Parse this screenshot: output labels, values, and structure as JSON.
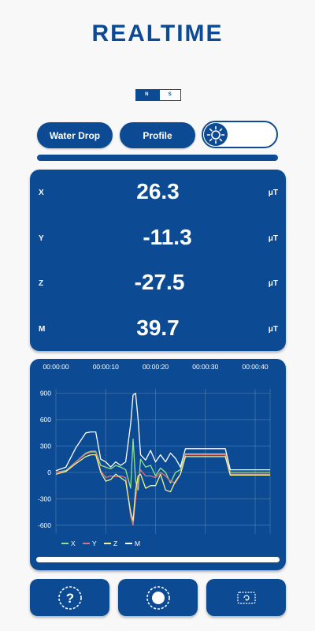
{
  "header": {
    "title": "REALTIME"
  },
  "polarity": {
    "n_label": "N",
    "s_label": "S"
  },
  "controls": {
    "water_drop_label": "Water Drop",
    "profile_label": "Profile",
    "light_toggle_icon": "sun-icon"
  },
  "progress": {
    "value": 1.0
  },
  "readings": {
    "x": {
      "axis": "X",
      "value": "26.3",
      "unit": "μT"
    },
    "y": {
      "axis": "Y",
      "value": "-11.3",
      "unit": "μT"
    },
    "z": {
      "axis": "Z",
      "value": "-27.5",
      "unit": "μT"
    },
    "m": {
      "axis": "M",
      "value": "39.7",
      "unit": "μT"
    }
  },
  "colors": {
    "primary": "#0c4b93",
    "x": "#8fe38f",
    "y": "#e0737d",
    "z": "#f2f28c",
    "m": "#ffffff"
  },
  "chart_data": {
    "type": "line",
    "x_ticks": [
      "00:00:00",
      "00:00:10",
      "00:00:20",
      "00:00:30",
      "00:00:40"
    ],
    "y_ticks": [
      "900",
      "600",
      "300",
      "0",
      "-300",
      "-600"
    ],
    "xlim": [
      0,
      43
    ],
    "ylim": [
      -700,
      950
    ],
    "grid": true,
    "legend_position": "bottom-left",
    "series": [
      {
        "name": "X",
        "color": "#8fe38f",
        "x": [
          0,
          2,
          4,
          6,
          7,
          8,
          9,
          10,
          11,
          12,
          13,
          14,
          15,
          15.5,
          16,
          16.5,
          17,
          18,
          19,
          20,
          21,
          22,
          23,
          24,
          25,
          26,
          27,
          28,
          29,
          30,
          31,
          32,
          33,
          34,
          35,
          36,
          37,
          38,
          39,
          40,
          41,
          42,
          43
        ],
        "y": [
          0,
          20,
          120,
          220,
          240,
          240,
          80,
          60,
          40,
          80,
          60,
          30,
          -180,
          380,
          -100,
          -200,
          150,
          60,
          80,
          -40,
          50,
          0,
          -120,
          0,
          30,
          210,
          210,
          210,
          210,
          210,
          210,
          210,
          210,
          210,
          0,
          0,
          0,
          0,
          0,
          0,
          0,
          0,
          0
        ]
      },
      {
        "name": "Y",
        "color": "#e0737d",
        "x": [
          0,
          2,
          4,
          6,
          7,
          8,
          9,
          10,
          11,
          12,
          13,
          14,
          15,
          15.5,
          16,
          16.5,
          17,
          18,
          19,
          20,
          21,
          22,
          23,
          24,
          25,
          26,
          27,
          28,
          29,
          30,
          31,
          32,
          33,
          34,
          35,
          36,
          37,
          38,
          39,
          40,
          41,
          42,
          43
        ],
        "y": [
          0,
          10,
          120,
          210,
          230,
          230,
          20,
          -60,
          -40,
          -50,
          -40,
          -60,
          -500,
          -600,
          -300,
          -80,
          30,
          -40,
          -40,
          -60,
          0,
          -40,
          -100,
          -120,
          -20,
          200,
          200,
          200,
          200,
          200,
          200,
          200,
          200,
          200,
          -20,
          -20,
          -20,
          -20,
          -20,
          -20,
          -20,
          -20,
          -20
        ]
      },
      {
        "name": "Z",
        "color": "#f2f28c",
        "x": [
          0,
          2,
          4,
          6,
          7,
          8,
          9,
          10,
          11,
          12,
          13,
          14,
          15,
          15.5,
          16,
          16.5,
          17,
          18,
          19,
          20,
          21,
          22,
          23,
          24,
          25,
          26,
          27,
          28,
          29,
          30,
          31,
          32,
          33,
          34,
          35,
          36,
          37,
          38,
          39,
          40,
          41,
          42,
          43
        ],
        "y": [
          -20,
          10,
          100,
          180,
          200,
          200,
          0,
          -100,
          -80,
          -20,
          -60,
          -100,
          -450,
          -550,
          -200,
          -40,
          -20,
          -180,
          -150,
          -150,
          -20,
          -200,
          -220,
          -100,
          -20,
          180,
          180,
          180,
          180,
          180,
          180,
          180,
          180,
          180,
          -30,
          -30,
          -30,
          -30,
          -30,
          -30,
          -30,
          -30,
          -30
        ]
      },
      {
        "name": "M",
        "color": "#ffffff",
        "x": [
          0,
          2,
          4,
          6,
          7,
          8,
          9,
          10,
          11,
          12,
          13,
          14,
          15,
          15.5,
          16,
          16.5,
          17,
          18,
          19,
          20,
          21,
          22,
          23,
          24,
          25,
          26,
          27,
          28,
          29,
          30,
          31,
          32,
          33,
          34,
          35,
          36,
          37,
          38,
          39,
          40,
          41,
          42,
          43
        ],
        "y": [
          20,
          60,
          280,
          450,
          460,
          460,
          150,
          120,
          60,
          120,
          80,
          120,
          550,
          880,
          900,
          600,
          200,
          140,
          250,
          120,
          200,
          120,
          220,
          160,
          60,
          270,
          270,
          270,
          270,
          270,
          270,
          270,
          270,
          270,
          30,
          30,
          30,
          30,
          30,
          30,
          30,
          30,
          30
        ]
      }
    ]
  },
  "bottom": {
    "help_icon": "help-icon",
    "record_icon": "record-icon",
    "rotate_icon": "rotate-screen-icon"
  }
}
